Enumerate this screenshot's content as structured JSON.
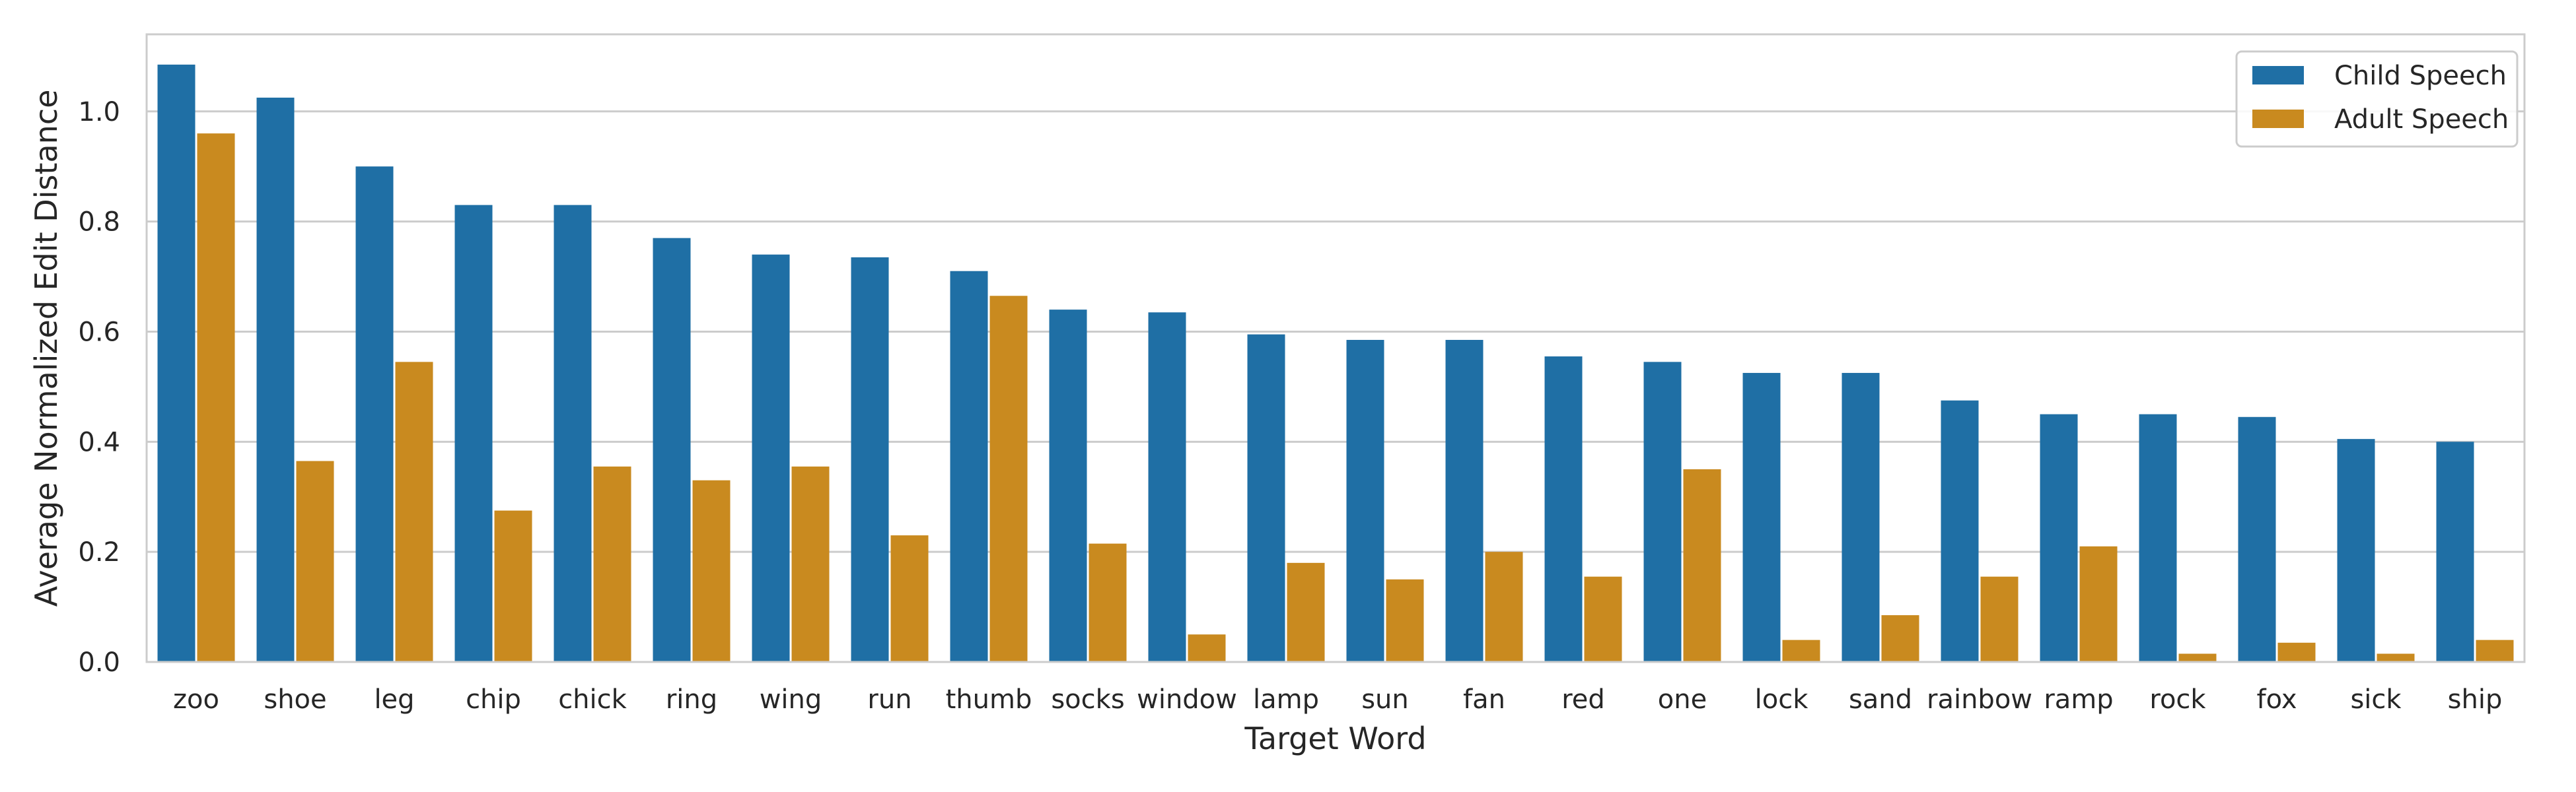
{
  "chart_data": {
    "type": "bar",
    "xlabel": "Target Word",
    "ylabel": "Average Normalized Edit Distance",
    "ylim": [
      0,
      1.14
    ],
    "yticks": [
      "0.0",
      "0.2",
      "0.4",
      "0.6",
      "0.8",
      "1.0"
    ],
    "grid": "horizontal",
    "legend_position": "top-right",
    "categories": [
      "zoo",
      "shoe",
      "leg",
      "chip",
      "chick",
      "ring",
      "wing",
      "run",
      "thumb",
      "socks",
      "window",
      "lamp",
      "sun",
      "fan",
      "red",
      "one",
      "lock",
      "sand",
      "rainbow",
      "ramp",
      "rock",
      "fox",
      "sick",
      "ship"
    ],
    "series": [
      {
        "name": "Child Speech",
        "color": "#1f6fa5",
        "values": [
          1.085,
          1.025,
          0.9,
          0.83,
          0.83,
          0.77,
          0.74,
          0.735,
          0.71,
          0.64,
          0.635,
          0.595,
          0.585,
          0.585,
          0.555,
          0.545,
          0.525,
          0.525,
          0.475,
          0.45,
          0.45,
          0.445,
          0.405,
          0.4
        ]
      },
      {
        "name": "Adult Speech",
        "color": "#c98a1f",
        "values": [
          0.96,
          0.365,
          0.545,
          0.275,
          0.355,
          0.33,
          0.355,
          0.23,
          0.665,
          0.215,
          0.05,
          0.18,
          0.15,
          0.2,
          0.155,
          0.35,
          0.04,
          0.085,
          0.155,
          0.21,
          0.015,
          0.035,
          0.015,
          0.04
        ]
      }
    ]
  }
}
